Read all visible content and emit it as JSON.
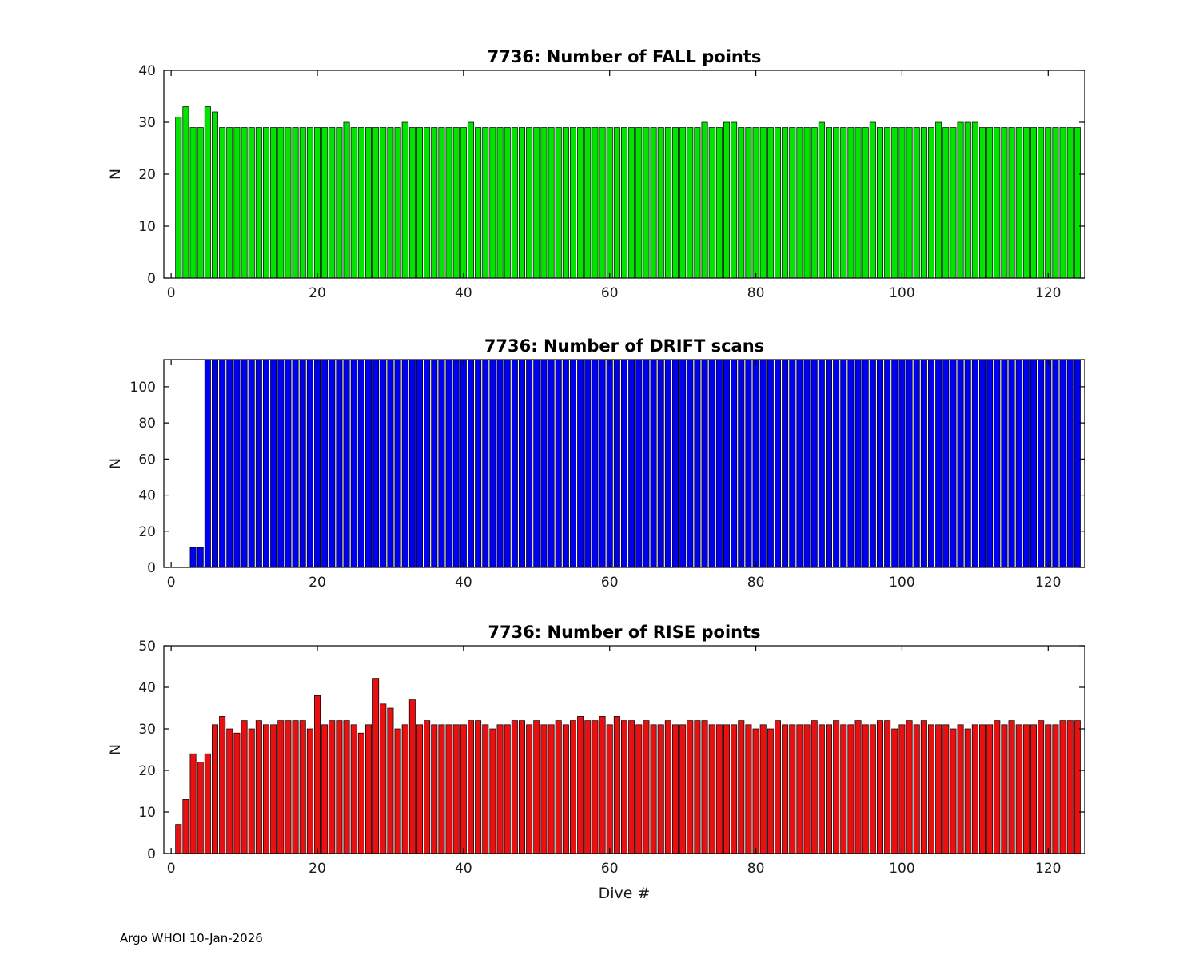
{
  "figure": {
    "footer": "Argo WHOI 10-Jan-2026"
  },
  "chart_data": [
    {
      "type": "bar",
      "title": "7736: Number of FALL points",
      "ylabel": "N",
      "xlabel": "",
      "bar_color": "#00E400",
      "bar_edge_color": "#000000",
      "ylim": [
        0,
        40
      ],
      "yticks": [
        0,
        10,
        20,
        30,
        40
      ],
      "xlim": [
        -1,
        125
      ],
      "xticks": [
        0,
        20,
        40,
        60,
        80,
        100,
        120
      ],
      "x_start": 1,
      "values": [
        31,
        33,
        29,
        29,
        33,
        32,
        29,
        29,
        29,
        29,
        29,
        29,
        29,
        29,
        29,
        29,
        29,
        29,
        29,
        29,
        29,
        29,
        29,
        30,
        29,
        29,
        29,
        29,
        29,
        29,
        29,
        30,
        29,
        29,
        29,
        29,
        29,
        29,
        29,
        29,
        30,
        29,
        29,
        29,
        29,
        29,
        29,
        29,
        29,
        29,
        29,
        29,
        29,
        29,
        29,
        29,
        29,
        29,
        29,
        29,
        29,
        29,
        29,
        29,
        29,
        29,
        29,
        29,
        29,
        29,
        29,
        29,
        30,
        29,
        29,
        30,
        30,
        29,
        29,
        29,
        29,
        29,
        29,
        29,
        29,
        29,
        29,
        29,
        30,
        29,
        29,
        29,
        29,
        29,
        29,
        30,
        29,
        29,
        29,
        29,
        29,
        29,
        29,
        29,
        30,
        29,
        29,
        30,
        30,
        30,
        29,
        29,
        29,
        29,
        29,
        29,
        29,
        29,
        29,
        29,
        29,
        29,
        29,
        29
      ]
    },
    {
      "type": "bar",
      "title": "7736: Number of DRIFT scans",
      "ylabel": "N",
      "xlabel": "",
      "bar_color": "#0000F0",
      "bar_edge_color": "#000000",
      "ylim": [
        0,
        115
      ],
      "yticks": [
        0,
        20,
        40,
        60,
        80,
        100
      ],
      "xlim": [
        -1,
        125
      ],
      "xticks": [
        0,
        20,
        40,
        60,
        80,
        100,
        120
      ],
      "x_start": 1,
      "note": "full-height bars are clipped at the top of the axis",
      "values": [
        0,
        0,
        11,
        11,
        115,
        115,
        115,
        115,
        115,
        115,
        115,
        115,
        115,
        115,
        115,
        115,
        115,
        115,
        115,
        115,
        115,
        115,
        115,
        115,
        115,
        115,
        115,
        115,
        115,
        115,
        115,
        115,
        115,
        115,
        115,
        115,
        115,
        115,
        115,
        115,
        115,
        115,
        115,
        115,
        115,
        115,
        115,
        115,
        115,
        115,
        115,
        115,
        115,
        115,
        115,
        115,
        115,
        115,
        115,
        115,
        115,
        115,
        115,
        115,
        115,
        115,
        115,
        115,
        115,
        115,
        115,
        115,
        115,
        115,
        115,
        115,
        115,
        115,
        115,
        115,
        115,
        115,
        115,
        115,
        115,
        115,
        115,
        115,
        115,
        115,
        115,
        115,
        115,
        115,
        115,
        115,
        115,
        115,
        115,
        115,
        115,
        115,
        115,
        115,
        115,
        115,
        115,
        115,
        115,
        115,
        115,
        115,
        115,
        115,
        115,
        115,
        115,
        115,
        115,
        115,
        115,
        115,
        115,
        115
      ]
    },
    {
      "type": "bar",
      "title": "7736: Number of RISE points",
      "ylabel": "N",
      "xlabel": "Dive #",
      "bar_color": "#E81010",
      "bar_edge_color": "#000000",
      "ylim": [
        0,
        50
      ],
      "yticks": [
        0,
        10,
        20,
        30,
        40,
        50
      ],
      "xlim": [
        -1,
        125
      ],
      "xticks": [
        0,
        20,
        40,
        60,
        80,
        100,
        120
      ],
      "x_start": 1,
      "values": [
        7,
        13,
        24,
        22,
        24,
        31,
        33,
        30,
        29,
        32,
        30,
        32,
        31,
        31,
        32,
        32,
        32,
        32,
        30,
        38,
        31,
        32,
        32,
        32,
        31,
        29,
        31,
        42,
        36,
        35,
        30,
        31,
        37,
        31,
        32,
        31,
        31,
        31,
        31,
        31,
        32,
        32,
        31,
        30,
        31,
        31,
        32,
        32,
        31,
        32,
        31,
        31,
        32,
        31,
        32,
        33,
        32,
        32,
        33,
        31,
        33,
        32,
        32,
        31,
        32,
        31,
        31,
        32,
        31,
        31,
        32,
        32,
        32,
        31,
        31,
        31,
        31,
        32,
        31,
        30,
        31,
        30,
        32,
        31,
        31,
        31,
        31,
        32,
        31,
        31,
        32,
        31,
        31,
        32,
        31,
        31,
        32,
        32,
        30,
        31,
        32,
        31,
        32,
        31,
        31,
        31,
        30,
        31,
        30,
        31,
        31,
        31,
        32,
        31,
        32,
        31,
        31,
        31,
        32,
        31,
        31,
        32,
        32,
        32
      ]
    }
  ]
}
